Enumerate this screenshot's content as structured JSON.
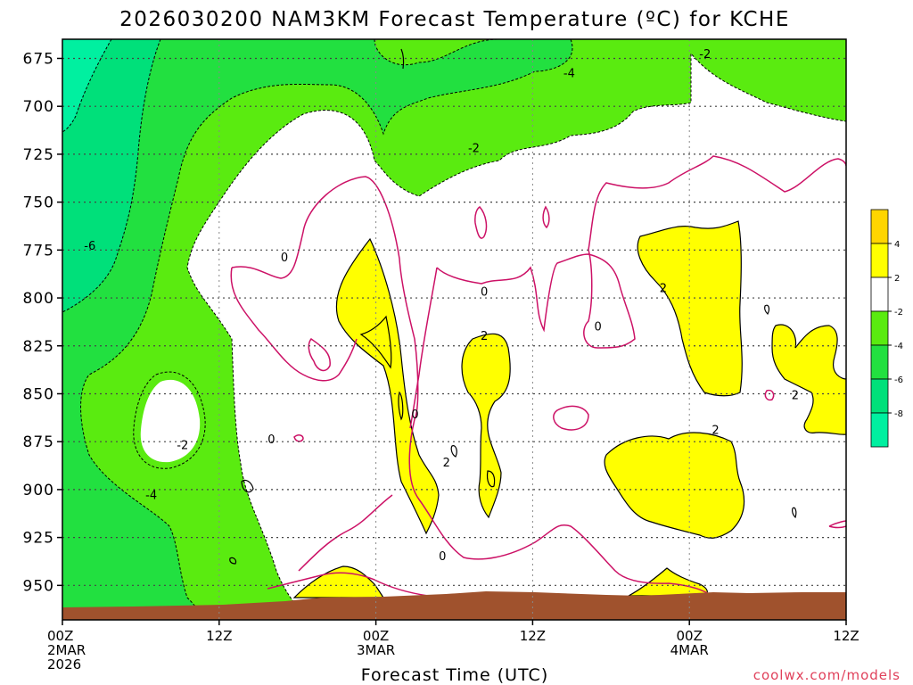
{
  "chart_data": {
    "type": "heatmap",
    "title": "2026030200 NAM3KM Forecast Temperature (ºC) for KCHE",
    "xlabel": "Forecast Time (UTC)",
    "ylabel": "",
    "credit": "coolwx.com/models",
    "x_range_hours": [
      0,
      60
    ],
    "y_range_hpa": [
      968,
      665
    ],
    "y_ticks": [
      "675",
      "700",
      "725",
      "750",
      "775",
      "800",
      "825",
      "850",
      "875",
      "900",
      "925",
      "950"
    ],
    "x_ticks": [
      {
        "hour": 0,
        "line1": "00Z",
        "line2": "2MAR",
        "line3": "2026"
      },
      {
        "hour": 12,
        "line1": "12Z",
        "line2": "",
        "line3": ""
      },
      {
        "hour": 24,
        "line1": "00Z",
        "line2": "3MAR",
        "line3": ""
      },
      {
        "hour": 36,
        "line1": "12Z",
        "line2": "",
        "line3": ""
      },
      {
        "hour": 48,
        "line1": "00Z",
        "line2": "4MAR",
        "line3": ""
      },
      {
        "hour": 60,
        "line1": "12Z",
        "line2": "",
        "line3": ""
      }
    ],
    "grid": true,
    "colorbar": {
      "placement": "right",
      "bins": [
        {
          "range": [
            -10,
            -8
          ],
          "color": "#00f0a0"
        },
        {
          "range": [
            -8,
            -6
          ],
          "color": "#00e07a"
        },
        {
          "range": [
            -6,
            -4
          ],
          "color": "#22e040"
        },
        {
          "range": [
            -4,
            -2
          ],
          "color": "#5aeb10"
        },
        {
          "range": [
            -2,
            2
          ],
          "color": "#ffffff"
        },
        {
          "range": [
            2,
            4
          ],
          "color": "#ffff00"
        },
        {
          "range": [
            4,
            6
          ],
          "color": "#ffd500"
        }
      ],
      "tick_labels": [
        "4",
        "2",
        "-2",
        "-4",
        "-6",
        "-8"
      ]
    },
    "contour_labels": [
      {
        "text": "-2",
        "hour": 49.2,
        "hpa": 673
      },
      {
        "text": "-4",
        "hour": 38.8,
        "hpa": 683
      },
      {
        "text": "-2",
        "hour": 31.5,
        "hpa": 722
      },
      {
        "text": "-6",
        "hour": 2.1,
        "hpa": 773
      },
      {
        "text": "0",
        "hour": 17.0,
        "hpa": 779
      },
      {
        "text": "0",
        "hour": 32.3,
        "hpa": 797
      },
      {
        "text": "0",
        "hour": 41.0,
        "hpa": 815
      },
      {
        "text": "2",
        "hour": 46.0,
        "hpa": 795
      },
      {
        "text": "2",
        "hour": 32.3,
        "hpa": 820
      },
      {
        "text": "2",
        "hour": 56.1,
        "hpa": 851
      },
      {
        "text": "0",
        "hour": 27.0,
        "hpa": 861
      },
      {
        "text": "0",
        "hour": 16.0,
        "hpa": 874
      },
      {
        "text": "-2",
        "hour": 9.2,
        "hpa": 877
      },
      {
        "text": "2",
        "hour": 50.0,
        "hpa": 869
      },
      {
        "text": "2",
        "hour": 29.4,
        "hpa": 886
      },
      {
        "text": "-4",
        "hour": 6.8,
        "hpa": 903
      },
      {
        "text": "0",
        "hour": 29.1,
        "hpa": 935
      }
    ],
    "ground": {
      "color": "#a0522d",
      "hpa_top_left": 962,
      "hpa_top_right": 958
    }
  }
}
